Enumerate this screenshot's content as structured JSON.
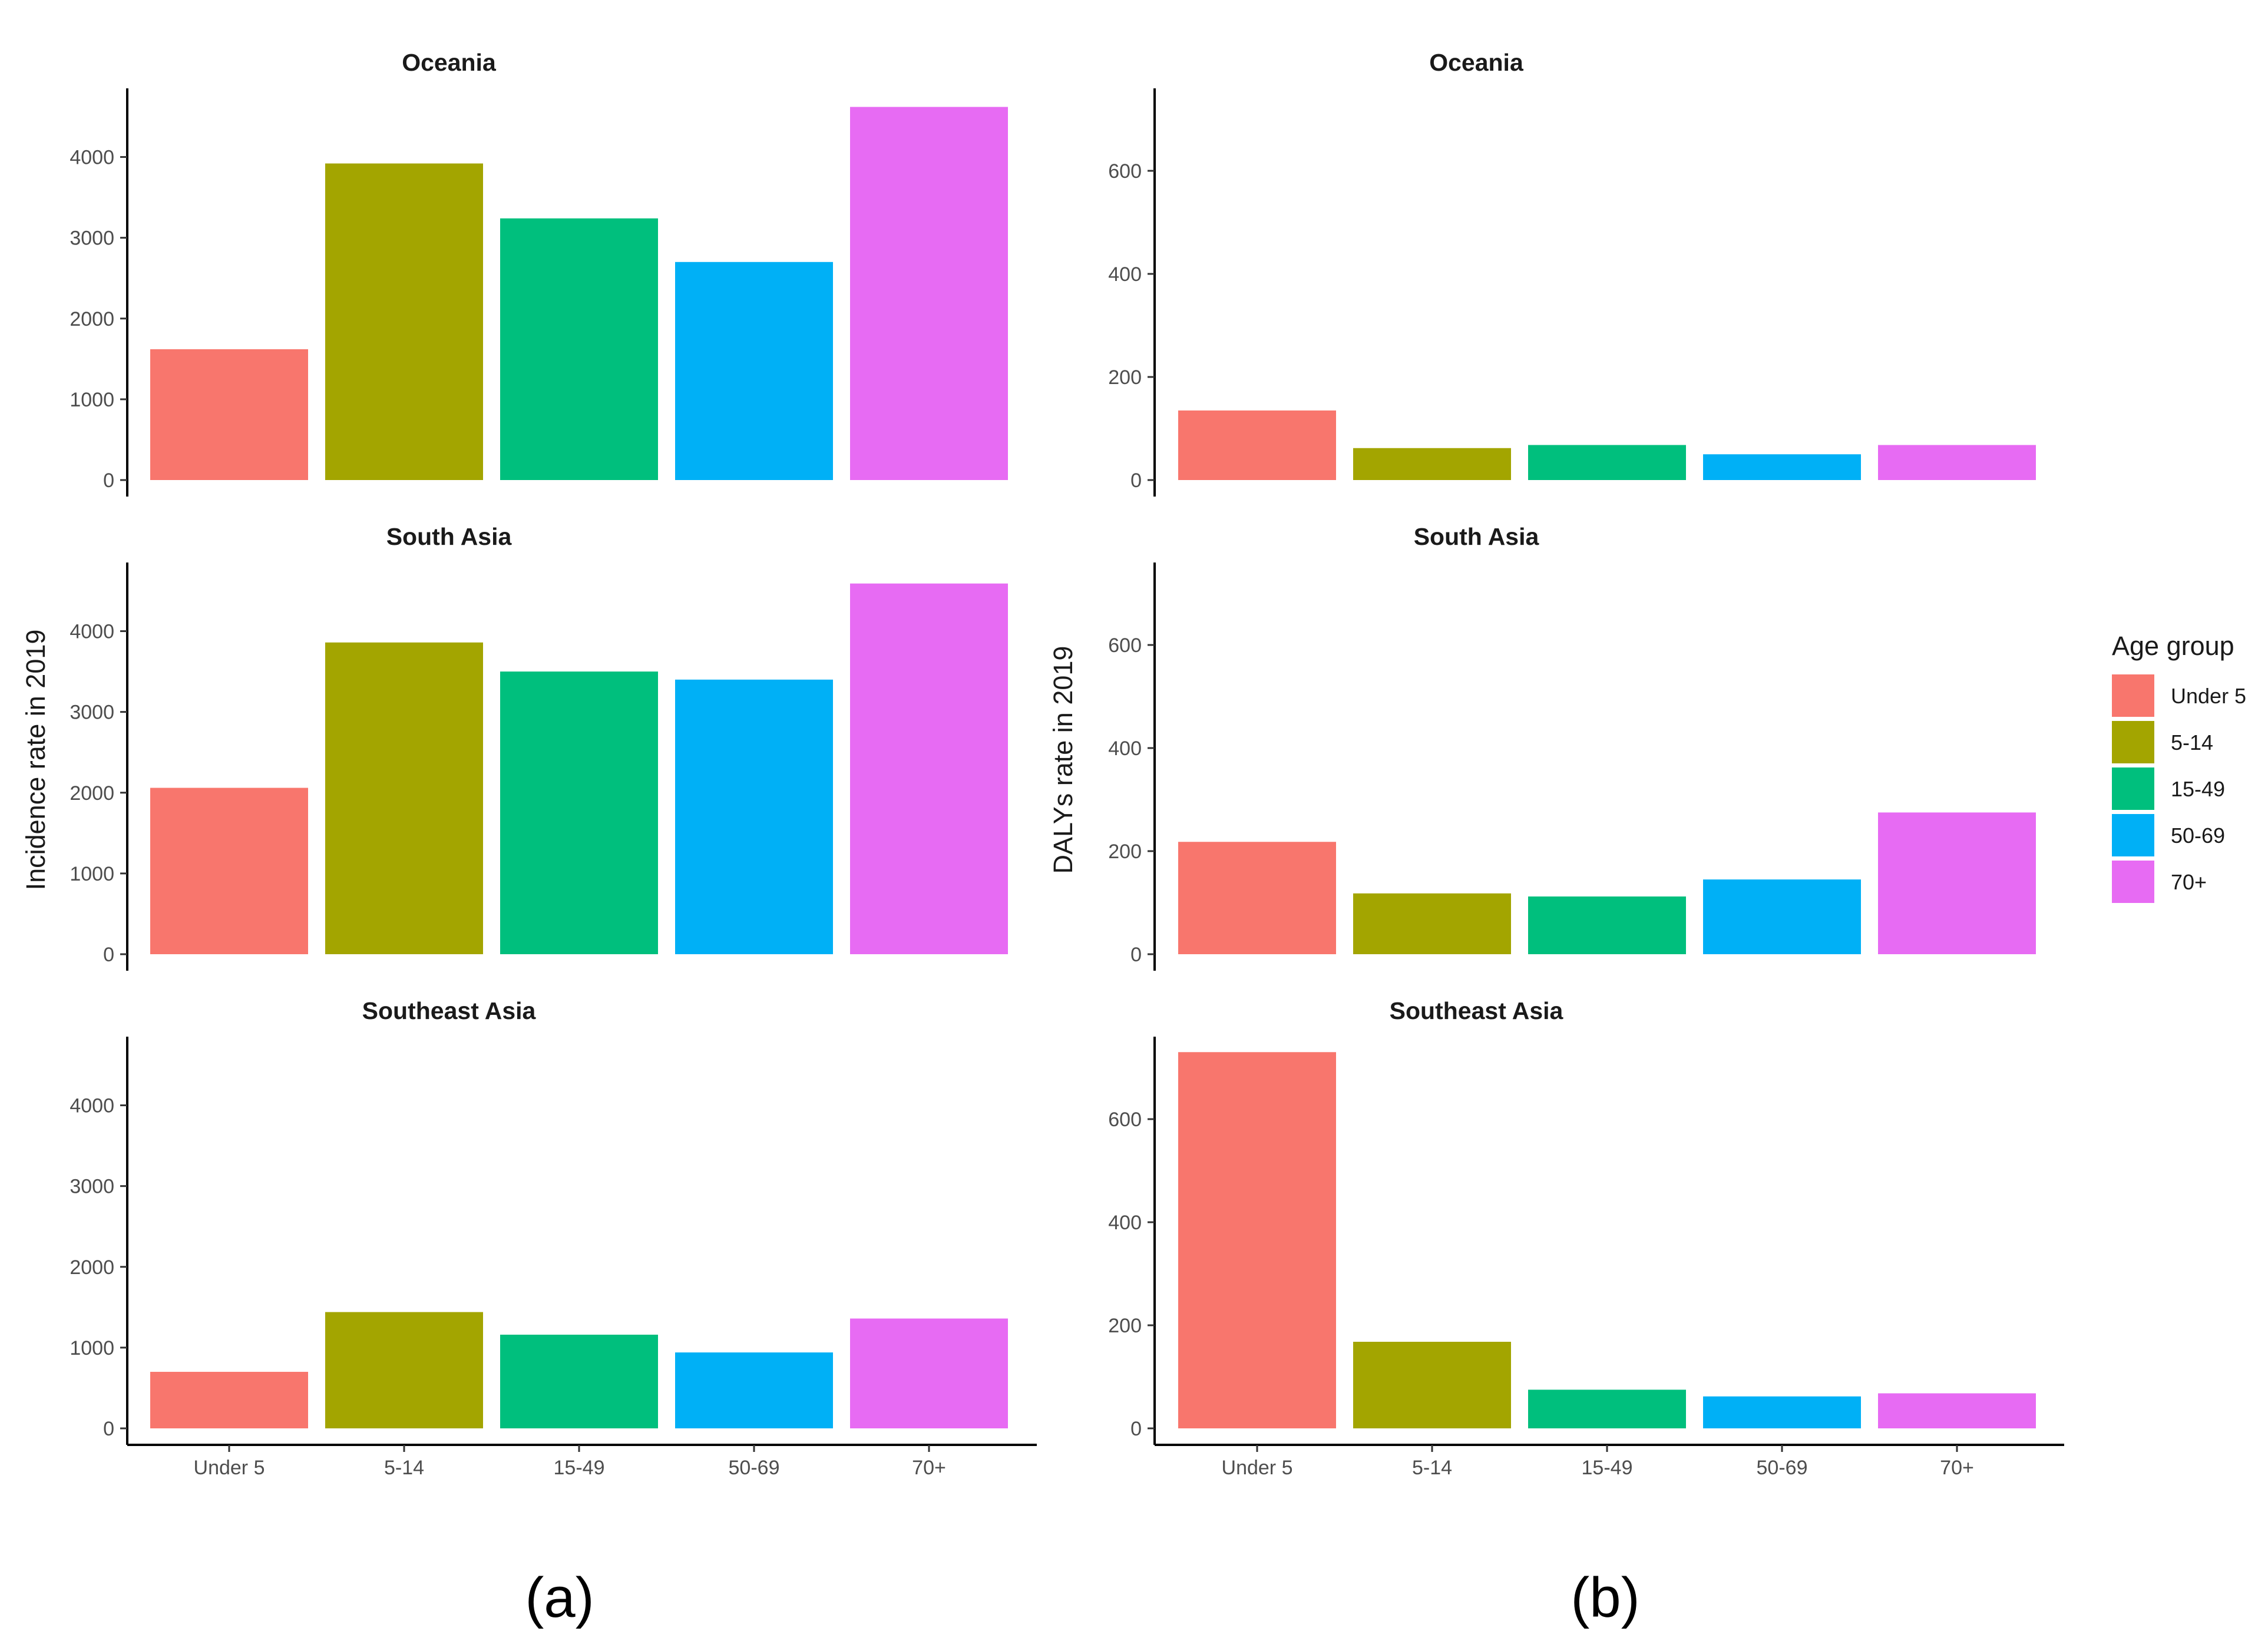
{
  "chart_data": [
    {
      "type": "bar",
      "panel_label": "(a)",
      "ylabel": "Incidence rate in 2019",
      "categories": [
        "Under 5",
        "5-14",
        "15-49",
        "50-69",
        "70+"
      ],
      "ylim": [
        0,
        4850
      ],
      "yticks": [
        0,
        1000,
        2000,
        3000,
        4000
      ],
      "facets": [
        {
          "title": "Oceania",
          "values": [
            1620,
            3920,
            3240,
            2700,
            4620
          ]
        },
        {
          "title": "South Asia",
          "values": [
            2060,
            3860,
            3500,
            3400,
            4590
          ]
        },
        {
          "title": "Southeast Asia",
          "values": [
            700,
            1440,
            1160,
            940,
            1360
          ]
        }
      ]
    },
    {
      "type": "bar",
      "panel_label": "(b)",
      "ylabel": "DALYs rate in 2019",
      "categories": [
        "Under 5",
        "5-14",
        "15-49",
        "50-69",
        "70+"
      ],
      "ylim": [
        0,
        760
      ],
      "yticks": [
        0,
        200,
        400,
        600
      ],
      "facets": [
        {
          "title": "Oceania",
          "values": [
            135,
            62,
            68,
            50,
            68
          ]
        },
        {
          "title": "South Asia",
          "values": [
            218,
            118,
            112,
            145,
            275
          ]
        },
        {
          "title": "Southeast Asia",
          "values": [
            730,
            168,
            75,
            62,
            68
          ]
        }
      ]
    }
  ],
  "legend": {
    "title": "Age group",
    "position": "right",
    "entries": [
      {
        "label": "Under 5",
        "color": "#F8766D"
      },
      {
        "label": "5-14",
        "color": "#A3A500"
      },
      {
        "label": "15-49",
        "color": "#00BF7D"
      },
      {
        "label": "50-69",
        "color": "#00B0F6"
      },
      {
        "label": "70+",
        "color": "#E76BF3"
      }
    ]
  }
}
